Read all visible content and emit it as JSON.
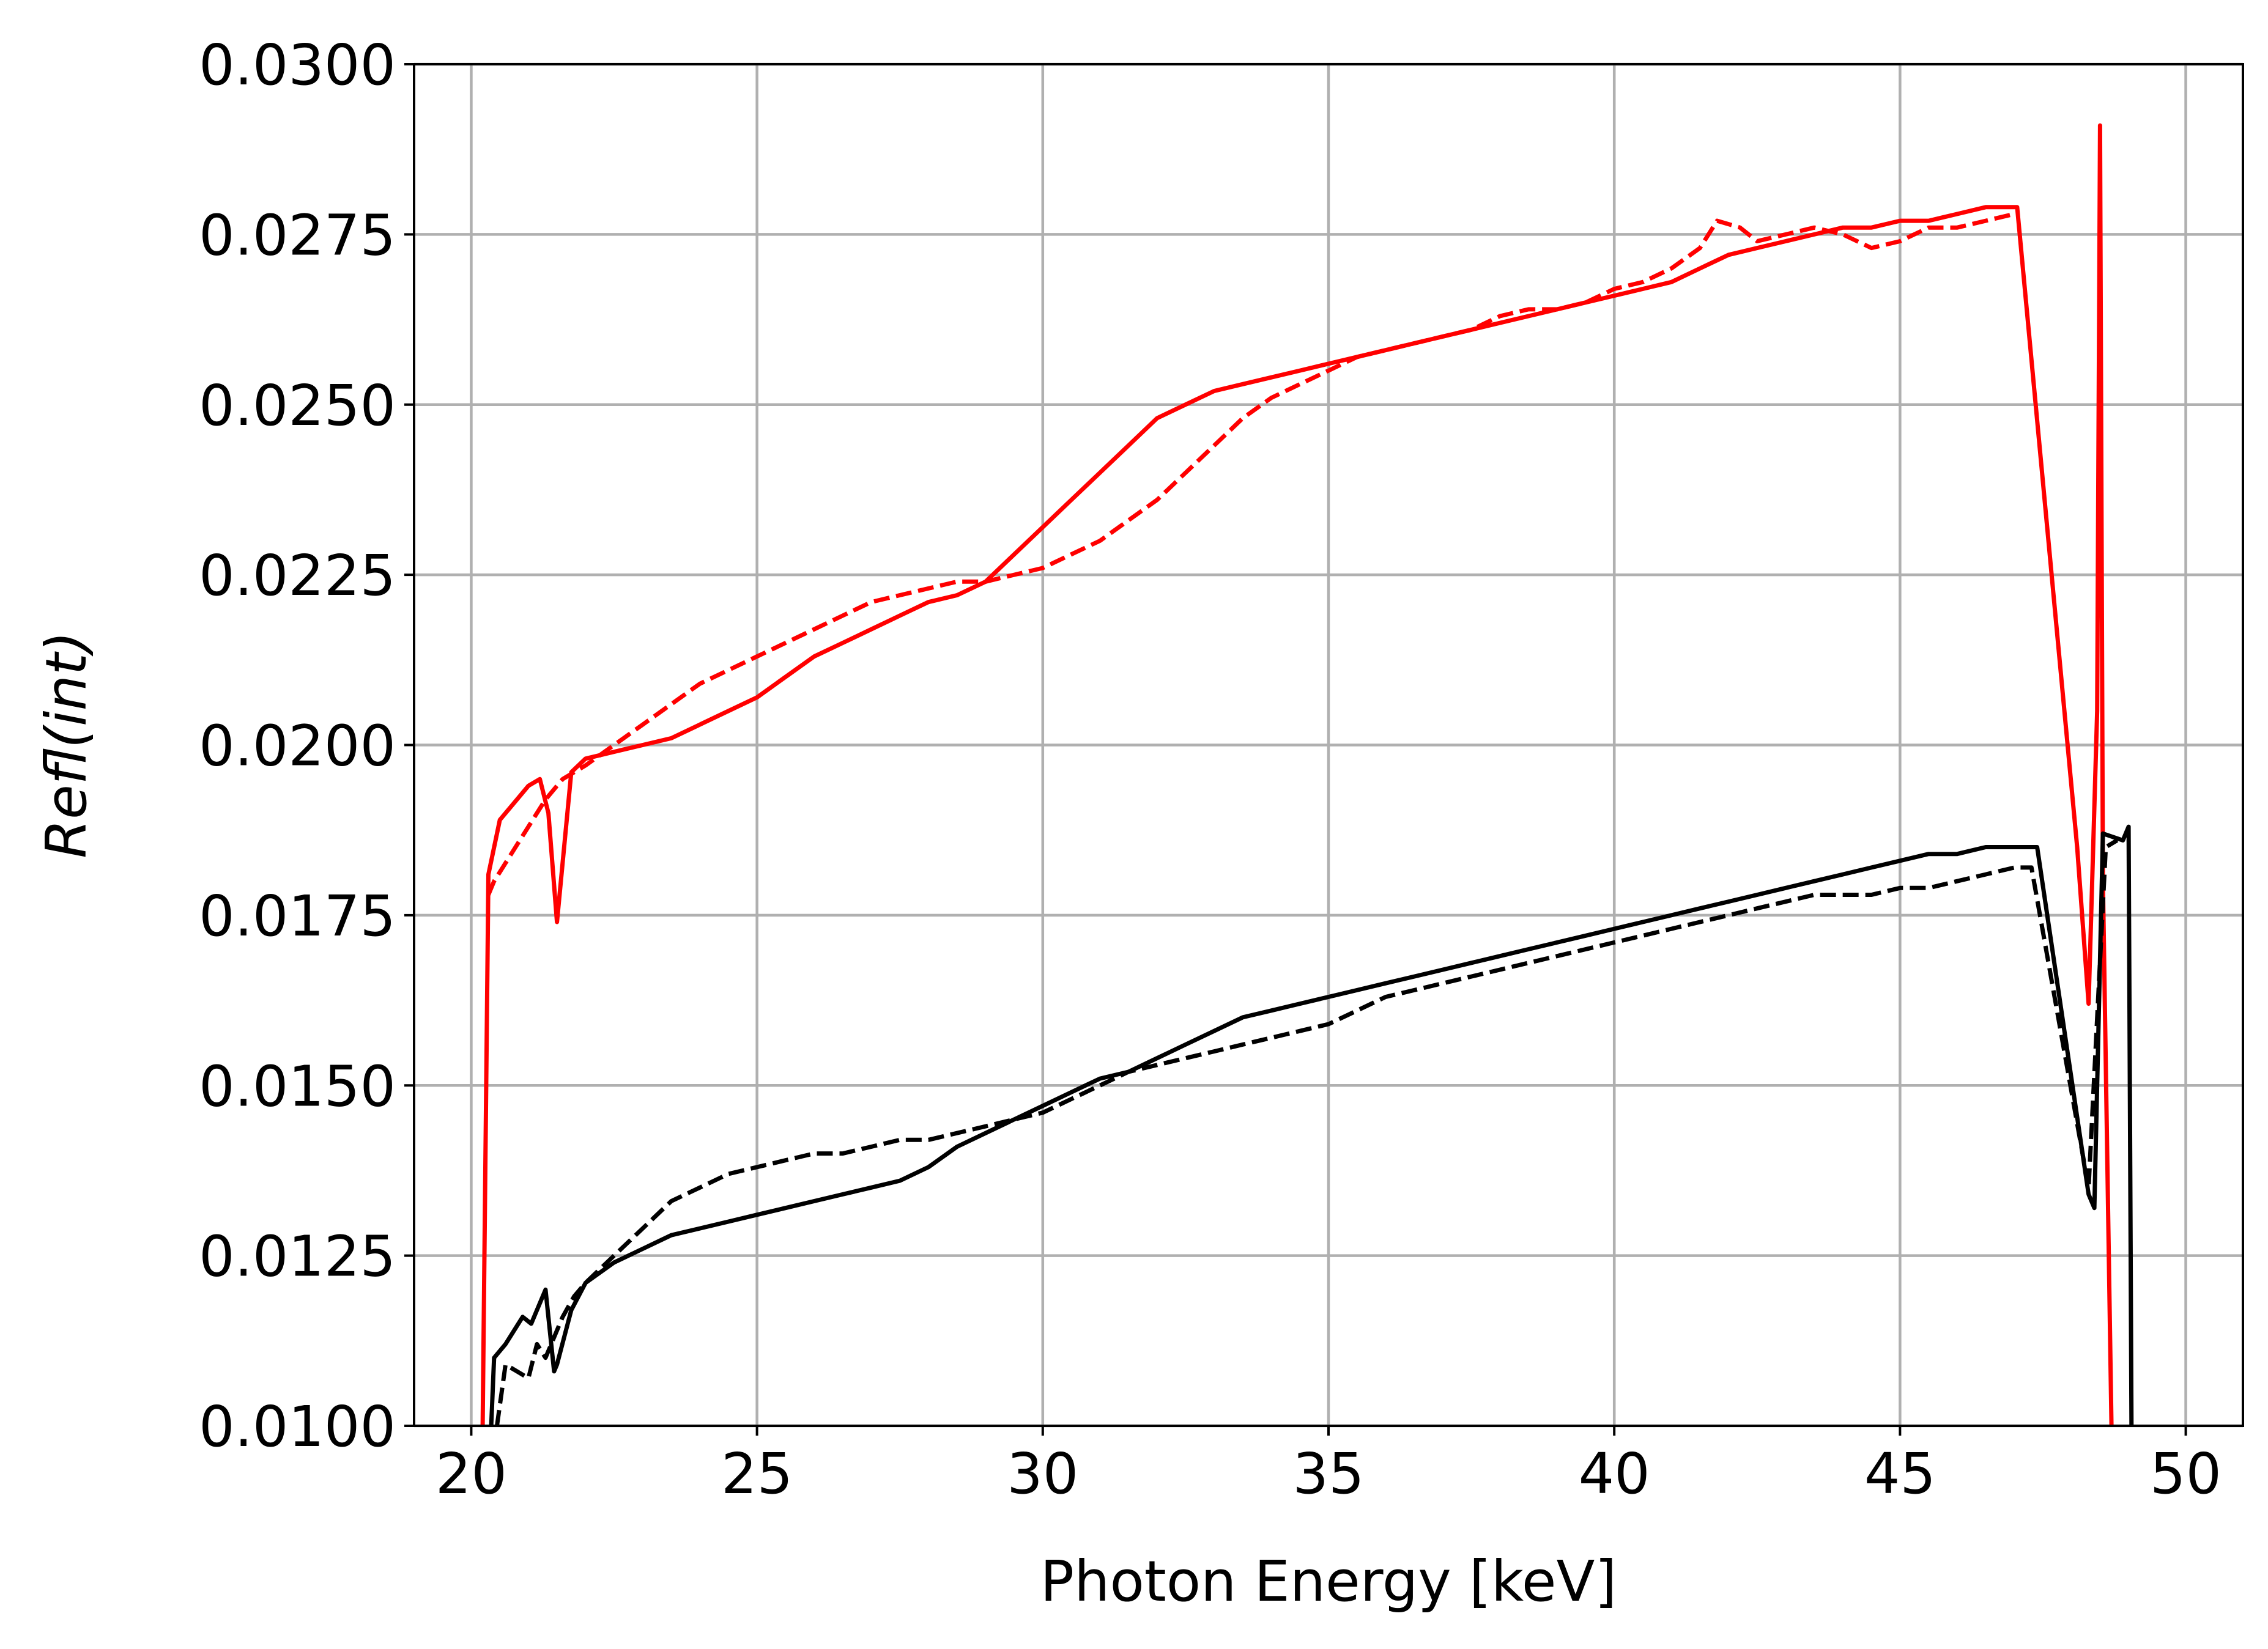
{
  "chart_data": {
    "type": "line",
    "xlabel": "Photon Energy [keV]",
    "ylabel": "Refl(int)",
    "xlim": [
      19,
      51
    ],
    "ylim": [
      0.01,
      0.03
    ],
    "x_ticks": [
      "20",
      "25",
      "30",
      "35",
      "40",
      "45",
      "50"
    ],
    "y_ticks": [
      "0.0100",
      "0.0125",
      "0.0150",
      "0.0175",
      "0.0200",
      "0.0225",
      "0.0250",
      "0.0275",
      "0.0300"
    ],
    "grid": true,
    "series": [
      {
        "color": "#ff0000",
        "style": "solid",
        "x": [
          20.2,
          20.3,
          20.5,
          20.8,
          21.0,
          21.2,
          21.35,
          21.5,
          21.75,
          22.0,
          22.5,
          23.0,
          23.5,
          24.0,
          24.5,
          25.0,
          25.5,
          26.0,
          26.5,
          27.0,
          27.5,
          28.0,
          28.5,
          29.0,
          29.5,
          30.0,
          30.5,
          31.0,
          31.5,
          32.0,
          32.5,
          33.0,
          33.5,
          34.0,
          34.5,
          35.0,
          35.5,
          36.0,
          36.5,
          37.0,
          37.5,
          38.0,
          38.5,
          39.0,
          39.5,
          40.0,
          40.5,
          41.0,
          41.5,
          42.0,
          42.5,
          43.0,
          43.5,
          44.0,
          44.5,
          45.0,
          45.5,
          46.0,
          46.5,
          47.0,
          47.05,
          48.1,
          48.3,
          48.45,
          48.5,
          48.55,
          48.7
        ],
        "y": [
          0.01,
          0.0181,
          0.0189,
          0.0192,
          0.0194,
          0.0195,
          0.019,
          0.0174,
          0.0196,
          0.0198,
          0.0199,
          0.02,
          0.0201,
          0.0203,
          0.0205,
          0.0207,
          0.021,
          0.0213,
          0.0215,
          0.0217,
          0.0219,
          0.0221,
          0.0222,
          0.0224,
          0.0228,
          0.0232,
          0.0236,
          0.024,
          0.0244,
          0.0248,
          0.025,
          0.0252,
          0.0253,
          0.0254,
          0.0255,
          0.0256,
          0.0257,
          0.0258,
          0.0259,
          0.026,
          0.0261,
          0.0262,
          0.0263,
          0.0264,
          0.0265,
          0.0266,
          0.0267,
          0.0268,
          0.027,
          0.0272,
          0.0273,
          0.0274,
          0.0275,
          0.0276,
          0.0276,
          0.0277,
          0.0277,
          0.0278,
          0.0279,
          0.0279,
          0.0279,
          0.0185,
          0.0162,
          0.0205,
          0.0291,
          0.018,
          0.01
        ]
      },
      {
        "color": "#ff0000",
        "style": "dashed",
        "x": [
          20.3,
          20.4,
          20.7,
          21.0,
          21.3,
          21.6,
          22.0,
          22.5,
          23.0,
          23.5,
          24.0,
          24.5,
          25.0,
          25.5,
          26.0,
          26.5,
          27.0,
          27.5,
          28.0,
          28.5,
          29.0,
          29.5,
          30.0,
          30.5,
          31.0,
          31.5,
          32.0,
          32.5,
          33.0,
          33.5,
          34.0,
          34.5,
          35.0,
          35.5,
          36.0,
          36.5,
          37.0,
          37.5,
          38.0,
          38.5,
          39.0,
          39.5,
          40.0,
          40.5,
          41.0,
          41.5,
          41.8,
          42.2,
          42.5,
          43.0,
          43.5,
          44.0,
          44.5,
          45.0,
          45.5,
          46.0,
          46.5,
          47.0,
          47.05
        ],
        "y": [
          0.0178,
          0.018,
          0.0184,
          0.0188,
          0.0192,
          0.0195,
          0.0197,
          0.02,
          0.0203,
          0.0206,
          0.0209,
          0.0211,
          0.0213,
          0.0215,
          0.0217,
          0.0219,
          0.0221,
          0.0222,
          0.0223,
          0.0224,
          0.0224,
          0.0225,
          0.0226,
          0.0228,
          0.023,
          0.0233,
          0.0236,
          0.024,
          0.0244,
          0.0248,
          0.0251,
          0.0253,
          0.0255,
          0.0257,
          0.0258,
          0.0259,
          0.026,
          0.0261,
          0.0263,
          0.0264,
          0.0264,
          0.0265,
          0.0267,
          0.0268,
          0.027,
          0.0273,
          0.0277,
          0.0276,
          0.0274,
          0.0275,
          0.0276,
          0.0275,
          0.0273,
          0.0274,
          0.0276,
          0.0276,
          0.0277,
          0.0278,
          0.0278
        ]
      },
      {
        "color": "#000000",
        "style": "solid",
        "x": [
          20.35,
          20.4,
          20.6,
          20.9,
          21.05,
          21.3,
          21.45,
          21.5,
          21.75,
          22.0,
          22.5,
          23.0,
          23.5,
          24.0,
          24.5,
          25.0,
          25.5,
          26.0,
          26.5,
          27.0,
          27.5,
          28.0,
          28.5,
          29.0,
          29.5,
          30.0,
          30.5,
          31.0,
          31.5,
          32.0,
          32.5,
          33.0,
          33.5,
          34.0,
          34.5,
          35.0,
          35.5,
          36.0,
          36.5,
          37.0,
          37.5,
          38.0,
          38.5,
          39.0,
          39.5,
          40.0,
          40.5,
          41.0,
          41.5,
          42.0,
          42.5,
          43.0,
          43.5,
          44.0,
          44.5,
          45.0,
          45.5,
          46.0,
          46.5,
          47.0,
          47.4,
          48.3,
          48.4,
          48.55,
          48.9,
          49.0,
          49.05
        ],
        "y": [
          0.01,
          0.011,
          0.0112,
          0.0116,
          0.0115,
          0.012,
          0.0108,
          0.0109,
          0.0117,
          0.0121,
          0.0124,
          0.0126,
          0.0128,
          0.0129,
          0.013,
          0.0131,
          0.0132,
          0.0133,
          0.0134,
          0.0135,
          0.0136,
          0.0138,
          0.0141,
          0.0143,
          0.0145,
          0.0147,
          0.0149,
          0.0151,
          0.0152,
          0.0154,
          0.0156,
          0.0158,
          0.016,
          0.0161,
          0.0162,
          0.0163,
          0.0164,
          0.0165,
          0.0166,
          0.0167,
          0.0168,
          0.0169,
          0.017,
          0.0171,
          0.0172,
          0.0173,
          0.0174,
          0.0175,
          0.0176,
          0.0177,
          0.0178,
          0.0179,
          0.018,
          0.0181,
          0.0182,
          0.0183,
          0.0184,
          0.0184,
          0.0185,
          0.0185,
          0.0185,
          0.0134,
          0.0132,
          0.0187,
          0.0186,
          0.0188,
          0.01
        ]
      },
      {
        "color": "#000000",
        "style": "dashed",
        "x": [
          20.45,
          20.6,
          20.8,
          21.0,
          21.15,
          21.3,
          21.45,
          21.6,
          21.8,
          22.0,
          22.5,
          23.0,
          23.5,
          24.0,
          24.5,
          25.0,
          25.5,
          26.0,
          26.5,
          27.0,
          27.5,
          28.0,
          28.5,
          29.0,
          29.5,
          30.0,
          30.5,
          31.0,
          31.5,
          32.0,
          32.5,
          33.0,
          33.5,
          34.0,
          34.5,
          35.0,
          35.5,
          36.0,
          36.5,
          37.0,
          37.5,
          38.0,
          38.5,
          39.0,
          39.5,
          40.0,
          40.5,
          41.0,
          41.5,
          42.0,
          42.5,
          43.0,
          43.5,
          44.0,
          44.5,
          45.0,
          45.5,
          46.0,
          46.5,
          47.0,
          47.3,
          48.3,
          48.6,
          48.8
        ],
        "y": [
          0.01,
          0.0109,
          0.0108,
          0.0107,
          0.0112,
          0.011,
          0.0113,
          0.0116,
          0.0119,
          0.0121,
          0.0125,
          0.0129,
          0.0133,
          0.0135,
          0.0137,
          0.0138,
          0.0139,
          0.014,
          0.014,
          0.0141,
          0.0142,
          0.0142,
          0.0143,
          0.0144,
          0.0145,
          0.0146,
          0.0148,
          0.015,
          0.0152,
          0.0153,
          0.0154,
          0.0155,
          0.0156,
          0.0157,
          0.0158,
          0.0159,
          0.0161,
          0.0163,
          0.0164,
          0.0165,
          0.0166,
          0.0167,
          0.0168,
          0.0169,
          0.017,
          0.0171,
          0.0172,
          0.0173,
          0.0174,
          0.0175,
          0.0176,
          0.0177,
          0.0178,
          0.0178,
          0.0178,
          0.0179,
          0.0179,
          0.018,
          0.0181,
          0.0182,
          0.0182,
          0.0135,
          0.0185,
          0.0186
        ]
      }
    ]
  }
}
